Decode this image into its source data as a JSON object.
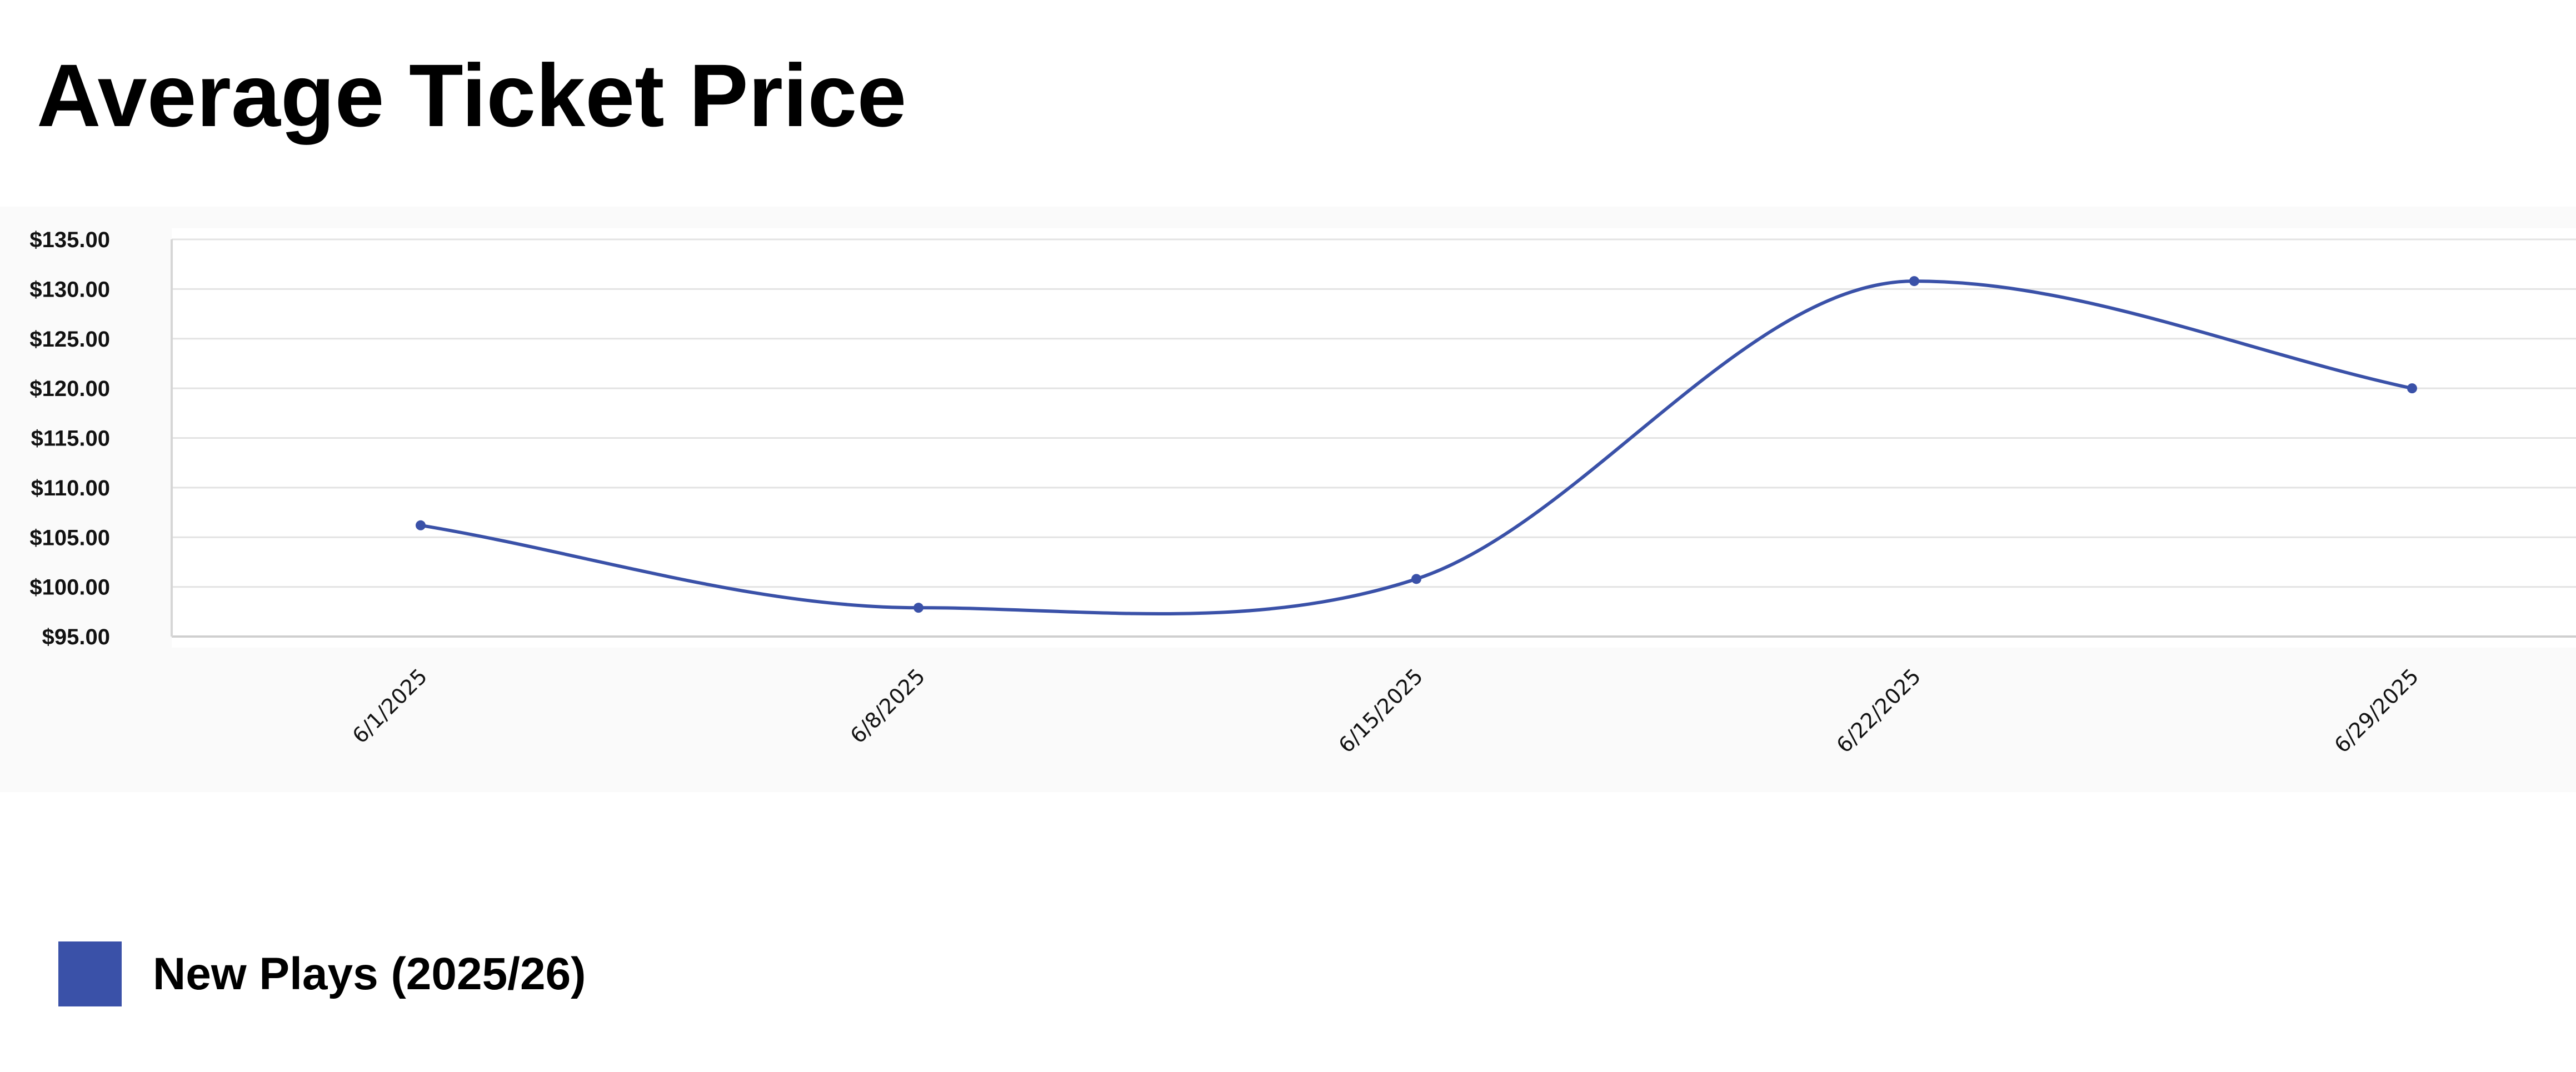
{
  "title": "Average Ticket Price",
  "colors": {
    "series": "#3a51a8",
    "grid": "#e3e3e3",
    "panel": "#fafafa"
  },
  "chart_data": {
    "type": "line",
    "title": "Average Ticket Price",
    "xlabel": "",
    "ylabel": "",
    "categories": [
      "6/1/2025",
      "6/8/2025",
      "6/15/2025",
      "6/22/2025",
      "6/29/2025"
    ],
    "ylim": [
      95,
      135
    ],
    "yticks": [
      95,
      100,
      105,
      110,
      115,
      120,
      125,
      130,
      135
    ],
    "ytick_labels": [
      "$95.00",
      "$100.00",
      "$105.00",
      "$110.00",
      "$115.00",
      "$120.00",
      "$125.00",
      "$130.00",
      "$135.00"
    ],
    "grid": true,
    "legend_position": "bottom-left",
    "series": [
      {
        "name": "New Plays (2025/26)",
        "color": "#3a51a8",
        "values": [
          106.2,
          97.9,
          100.8,
          130.8,
          120.0
        ]
      }
    ]
  }
}
